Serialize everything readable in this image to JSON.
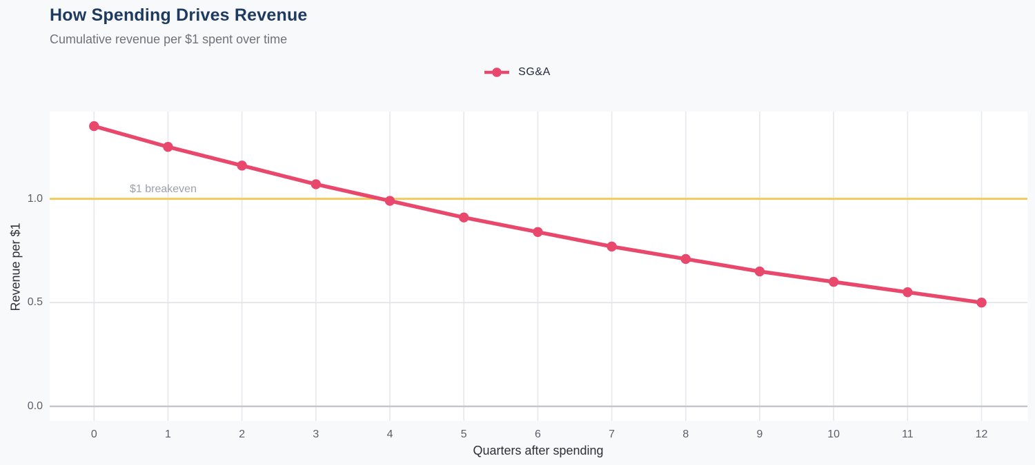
{
  "header": {
    "title": "How Spending Drives Revenue",
    "subtitle": "Cumulative revenue per $1 spent over time"
  },
  "legend": {
    "series_label": "SG&A"
  },
  "annotation": {
    "breakeven_label": "$1 breakeven"
  },
  "colors": {
    "page_bg": "#f8f9fb",
    "plot_bg": "#ffffff",
    "accent_pink": "#e9486d",
    "breakeven_yellow": "#f6ca5a",
    "grid": "#e9eaed",
    "mid_grid": "#e3e4e7",
    "zero_line": "#c5c6cb",
    "title_navy": "#1e3a5f"
  },
  "chart_data": {
    "type": "line",
    "title": "How Spending Drives Revenue",
    "subtitle": "Cumulative revenue per $1 spent over time",
    "xlabel": "Quarters after spending",
    "ylabel": "Revenue per $1",
    "x": [
      0,
      1,
      2,
      3,
      4,
      5,
      6,
      7,
      8,
      9,
      10,
      11,
      12
    ],
    "series": [
      {
        "name": "SG&A",
        "values": [
          1.35,
          1.25,
          1.16,
          1.07,
          0.99,
          0.91,
          0.84,
          0.77,
          0.71,
          0.65,
          0.6,
          0.55,
          0.5
        ]
      }
    ],
    "reference_line": {
      "value": 1.0,
      "label": "$1 breakeven"
    },
    "xlim": [
      -0.6,
      12.62
    ],
    "ylim": [
      -0.07,
      1.42
    ],
    "x_ticks": [
      0,
      1,
      2,
      3,
      4,
      5,
      6,
      7,
      8,
      9,
      10,
      11,
      12
    ],
    "y_ticks": [
      {
        "value": 0.0,
        "label": "0.0"
      },
      {
        "value": 0.5,
        "label": "0.5"
      },
      {
        "value": 1.0,
        "label": "1.0"
      }
    ],
    "grid": true,
    "legend_position": "top-center"
  }
}
